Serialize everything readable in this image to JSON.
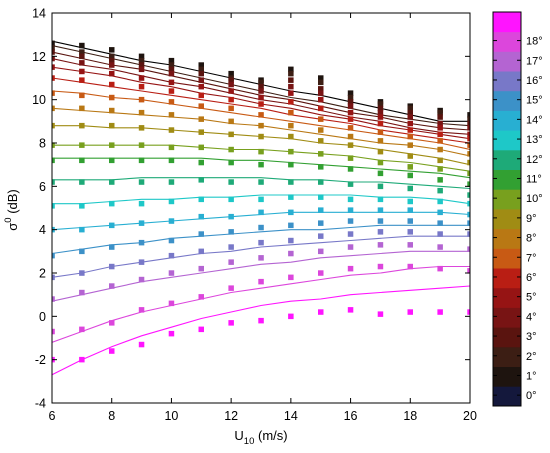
{
  "chart_data": {
    "type": "scatter",
    "xlabel": {
      "base": "U",
      "sub": "10",
      "rest": " (m/s)"
    },
    "ylabel": {
      "base": "σ",
      "sup": "0",
      "rest": " (dB)"
    },
    "xlim": [
      6,
      20
    ],
    "ylim": [
      -4,
      14
    ],
    "xticks": [
      6,
      8,
      10,
      12,
      14,
      16,
      18,
      20
    ],
    "yticks": [
      -4,
      -2,
      0,
      2,
      4,
      6,
      8,
      10,
      12,
      14
    ],
    "grid": false,
    "x": [
      6,
      7,
      8,
      9,
      10,
      11,
      12,
      13,
      14,
      15,
      16,
      17,
      18,
      19,
      20
    ],
    "colorbar": {
      "labels": [
        "0°",
        "1°",
        "2°",
        "3°",
        "4°",
        "5°",
        "6°",
        "7°",
        "8°",
        "9°",
        "10°",
        "11°",
        "12°",
        "13°",
        "14°",
        "15°",
        "16°",
        "17°",
        "18°"
      ],
      "colors": [
        "#14183c",
        "#1e140f",
        "#3c1e14",
        "#5a140f",
        "#781414",
        "#961414",
        "#b91e14",
        "#c85a14",
        "#b97814",
        "#a08c14",
        "#78a01e",
        "#32a032",
        "#1eaa78",
        "#1ec8c8",
        "#28afd2",
        "#3c91c8",
        "#7878c8",
        "#b464d2",
        "#dc46dc",
        "#ff14ff"
      ]
    },
    "series": [
      {
        "color": "#1e140f",
        "points": [
          12.6,
          12.5,
          12.3,
          12.0,
          11.8,
          11.6,
          11.2,
          10.9,
          11.4,
          11.0,
          10.3,
          9.9,
          9.7,
          9.5,
          9.3
        ]
      },
      {
        "color": "#3c1e14",
        "points": [
          12.4,
          12.2,
          12.0,
          11.8,
          11.6,
          11.4,
          11.0,
          10.8,
          11.2,
          10.8,
          10.1,
          9.8,
          9.6,
          9.4,
          9.1
        ]
      },
      {
        "color": "#5a140f",
        "points": [
          12.2,
          12.0,
          11.8,
          11.6,
          11.4,
          11.2,
          10.9,
          10.6,
          10.9,
          10.5,
          9.9,
          9.6,
          9.4,
          9.2,
          8.9
        ]
      },
      {
        "color": "#781414",
        "points": [
          11.9,
          11.7,
          11.6,
          11.4,
          11.2,
          10.9,
          10.7,
          10.4,
          10.6,
          10.3,
          9.7,
          9.4,
          9.2,
          8.9,
          8.7
        ]
      },
      {
        "color": "#961414",
        "points": [
          11.5,
          11.3,
          11.2,
          11.0,
          10.8,
          10.6,
          10.4,
          10.1,
          10.3,
          10.0,
          9.4,
          9.2,
          8.9,
          8.7,
          8.4
        ]
      },
      {
        "color": "#b91e14",
        "points": [
          11.0,
          10.9,
          10.7,
          10.6,
          10.4,
          10.2,
          10.0,
          9.8,
          9.9,
          9.6,
          9.1,
          8.9,
          8.6,
          8.4,
          8.2
        ]
      },
      {
        "color": "#c85a14",
        "points": [
          10.3,
          10.2,
          10.1,
          10.0,
          9.9,
          9.7,
          9.6,
          9.3,
          9.4,
          9.1,
          8.7,
          8.5,
          8.3,
          8.1,
          7.9
        ]
      },
      {
        "color": "#b97814",
        "points": [
          9.6,
          9.6,
          9.5,
          9.4,
          9.3,
          9.1,
          9.0,
          8.8,
          8.8,
          8.6,
          8.3,
          8.1,
          7.9,
          7.7,
          7.5
        ]
      },
      {
        "color": "#a08c14",
        "points": [
          8.8,
          8.8,
          8.8,
          8.7,
          8.6,
          8.5,
          8.4,
          8.3,
          8.3,
          8.1,
          7.9,
          7.6,
          7.4,
          7.2,
          7.1
        ]
      },
      {
        "color": "#78a01e",
        "points": [
          7.9,
          7.9,
          7.9,
          7.9,
          7.8,
          7.8,
          7.7,
          7.6,
          7.6,
          7.5,
          7.3,
          7.1,
          6.9,
          6.8,
          6.6
        ]
      },
      {
        "color": "#32a032",
        "points": [
          7.2,
          7.2,
          7.2,
          7.2,
          7.2,
          7.1,
          7.1,
          7.0,
          7.0,
          6.9,
          6.8,
          6.6,
          6.5,
          6.3,
          6.1
        ]
      },
      {
        "color": "#1eaa78",
        "points": [
          6.2,
          6.2,
          6.2,
          6.2,
          6.2,
          6.3,
          6.2,
          6.2,
          6.2,
          6.2,
          6.1,
          6.0,
          5.9,
          5.8,
          5.6
        ]
      },
      {
        "color": "#1ec8c8",
        "points": [
          5.1,
          5.1,
          5.2,
          5.2,
          5.3,
          5.4,
          5.4,
          5.4,
          5.5,
          5.5,
          5.4,
          5.4,
          5.3,
          5.3,
          5.2
        ]
      },
      {
        "color": "#28afd2",
        "points": [
          4.0,
          4.0,
          4.2,
          4.3,
          4.4,
          4.6,
          4.6,
          4.8,
          4.8,
          4.9,
          4.9,
          4.9,
          4.9,
          4.8,
          4.7
        ]
      },
      {
        "color": "#3c91c8",
        "points": [
          2.8,
          3.0,
          3.2,
          3.4,
          3.5,
          3.8,
          3.9,
          4.1,
          4.2,
          4.3,
          4.4,
          4.4,
          4.4,
          4.3,
          4.3
        ]
      },
      {
        "color": "#7878c8",
        "points": [
          1.8,
          2.0,
          2.3,
          2.5,
          2.8,
          3.0,
          3.2,
          3.4,
          3.5,
          3.7,
          3.8,
          3.9,
          3.9,
          3.8,
          3.8
        ]
      },
      {
        "color": "#b464d2",
        "points": [
          0.8,
          1.1,
          1.4,
          1.7,
          2.0,
          2.2,
          2.5,
          2.7,
          2.9,
          3.0,
          3.2,
          3.3,
          3.3,
          3.2,
          3.1
        ]
      },
      {
        "color": "#dc46dc",
        "points": [
          -0.7,
          -0.6,
          -0.3,
          0.3,
          0.6,
          0.9,
          1.3,
          1.6,
          1.8,
          2.0,
          2.2,
          2.3,
          2.3,
          2.2,
          2.1
        ]
      },
      {
        "color": "#ff14ff",
        "points": [
          -2.0,
          -2.0,
          -1.6,
          -1.3,
          -0.8,
          -0.6,
          -0.3,
          -0.2,
          0.0,
          0.2,
          0.3,
          0.1,
          0.2,
          0.2,
          0.2
        ]
      }
    ],
    "fit_curves": [
      {
        "color": "#000000",
        "y": [
          12.7,
          12.4,
          12.1,
          11.8,
          11.6,
          11.3,
          11.0,
          10.7,
          10.4,
          10.2,
          9.9,
          9.6,
          9.3,
          9.0,
          9.0
        ]
      },
      {
        "color": "#3c1e14",
        "y": [
          12.5,
          12.2,
          11.9,
          11.6,
          11.3,
          11.0,
          10.7,
          10.4,
          10.1,
          9.9,
          9.6,
          9.3,
          9.1,
          8.9,
          8.8
        ]
      },
      {
        "color": "#5a140f",
        "y": [
          12.2,
          11.9,
          11.6,
          11.4,
          11.1,
          10.8,
          10.5,
          10.2,
          10.0,
          9.7,
          9.4,
          9.2,
          8.9,
          8.7,
          8.6
        ]
      },
      {
        "color": "#781414",
        "y": [
          11.9,
          11.6,
          11.4,
          11.1,
          10.8,
          10.6,
          10.3,
          10.0,
          9.8,
          9.5,
          9.2,
          9.0,
          8.7,
          8.5,
          8.4
        ]
      },
      {
        "color": "#961414",
        "y": [
          11.5,
          11.3,
          11.1,
          10.8,
          10.6,
          10.3,
          10.1,
          9.8,
          9.6,
          9.3,
          9.1,
          8.8,
          8.6,
          8.4,
          8.2
        ]
      },
      {
        "color": "#b91e14",
        "y": [
          11.0,
          10.8,
          10.6,
          10.4,
          10.2,
          10.0,
          9.8,
          9.6,
          9.3,
          9.1,
          8.9,
          8.6,
          8.4,
          8.2,
          8.0
        ]
      },
      {
        "color": "#c85a14",
        "y": [
          10.4,
          10.3,
          10.1,
          10.0,
          9.8,
          9.6,
          9.4,
          9.2,
          9.0,
          8.8,
          8.6,
          8.4,
          8.2,
          8.0,
          7.7
        ]
      },
      {
        "color": "#b97814",
        "y": [
          9.6,
          9.5,
          9.4,
          9.3,
          9.2,
          9.1,
          8.9,
          8.8,
          8.6,
          8.4,
          8.2,
          8.0,
          7.9,
          7.7,
          7.4
        ]
      },
      {
        "color": "#a08c14",
        "y": [
          8.8,
          8.8,
          8.7,
          8.7,
          8.6,
          8.5,
          8.4,
          8.3,
          8.2,
          8.0,
          7.9,
          7.7,
          7.5,
          7.3,
          7.0
        ]
      },
      {
        "color": "#78a01e",
        "y": [
          7.9,
          7.9,
          7.9,
          7.9,
          7.9,
          7.8,
          7.7,
          7.7,
          7.6,
          7.5,
          7.4,
          7.2,
          7.1,
          6.9,
          6.7
        ]
      },
      {
        "color": "#32a032",
        "y": [
          7.3,
          7.3,
          7.3,
          7.3,
          7.3,
          7.3,
          7.2,
          7.2,
          7.1,
          7.0,
          6.9,
          6.8,
          6.7,
          6.6,
          6.4
        ]
      },
      {
        "color": "#1eaa78",
        "y": [
          6.3,
          6.3,
          6.3,
          6.4,
          6.4,
          6.4,
          6.4,
          6.4,
          6.3,
          6.3,
          6.2,
          6.2,
          6.1,
          6.0,
          5.9
        ]
      },
      {
        "color": "#1ec8c8",
        "y": [
          5.2,
          5.2,
          5.3,
          5.4,
          5.4,
          5.5,
          5.5,
          5.6,
          5.6,
          5.6,
          5.6,
          5.5,
          5.5,
          5.4,
          5.2
        ]
      },
      {
        "color": "#28afd2",
        "y": [
          4.0,
          4.1,
          4.2,
          4.3,
          4.4,
          4.5,
          4.6,
          4.7,
          4.8,
          4.8,
          4.8,
          4.8,
          4.8,
          4.8,
          4.7
        ]
      },
      {
        "color": "#3c91c8",
        "y": [
          2.9,
          3.1,
          3.3,
          3.4,
          3.6,
          3.7,
          3.8,
          3.9,
          4.0,
          4.0,
          4.1,
          4.2,
          4.2,
          4.2,
          4.2
        ]
      },
      {
        "color": "#7878c8",
        "y": [
          1.8,
          2.0,
          2.3,
          2.5,
          2.7,
          2.9,
          3.0,
          3.2,
          3.3,
          3.4,
          3.5,
          3.6,
          3.7,
          3.7,
          3.7
        ]
      },
      {
        "color": "#b464d2",
        "y": [
          0.7,
          1.0,
          1.3,
          1.6,
          1.8,
          2.0,
          2.2,
          2.4,
          2.5,
          2.7,
          2.8,
          2.9,
          3.0,
          3.0,
          3.0
        ]
      },
      {
        "color": "#dc46dc",
        "y": [
          -1.2,
          -0.7,
          -0.2,
          0.2,
          0.5,
          0.8,
          1.1,
          1.3,
          1.5,
          1.7,
          1.9,
          2.0,
          2.2,
          2.3,
          2.3
        ]
      },
      {
        "color": "#ff14ff",
        "y": [
          -2.7,
          -2.0,
          -1.4,
          -0.9,
          -0.5,
          -0.1,
          0.2,
          0.5,
          0.7,
          0.8,
          1.0,
          1.1,
          1.2,
          1.3,
          1.4
        ]
      }
    ]
  }
}
